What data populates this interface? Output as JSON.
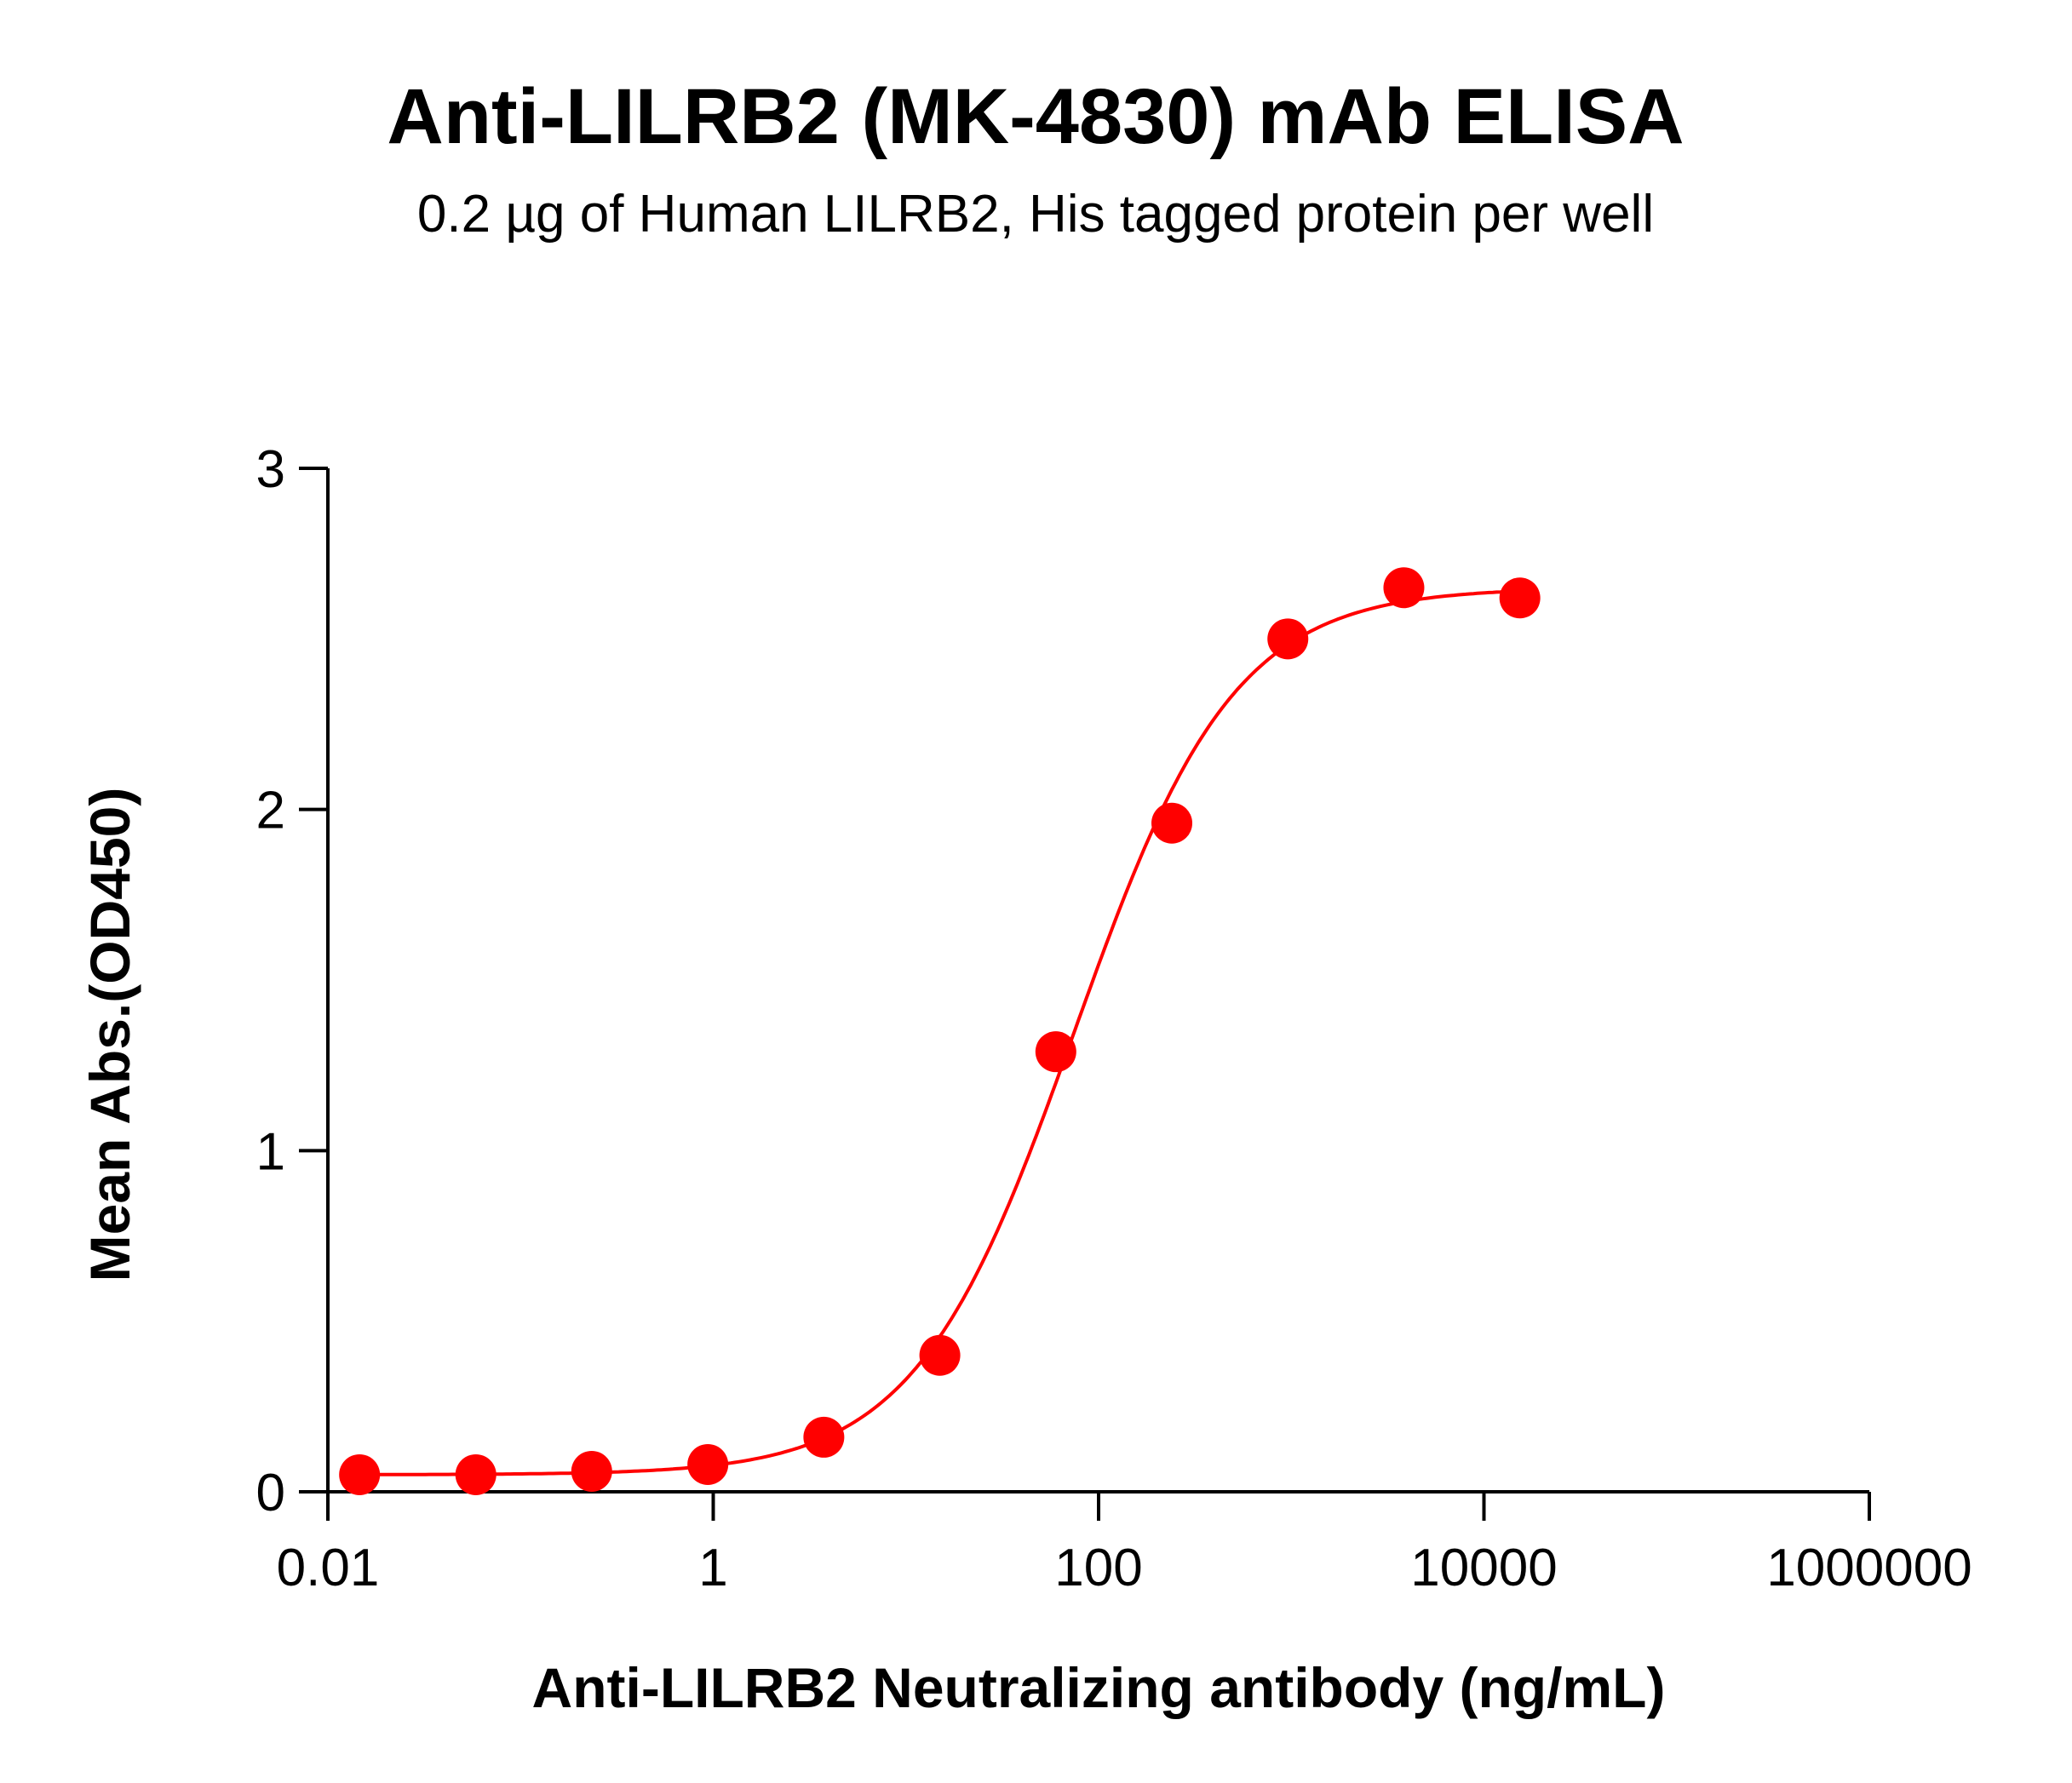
{
  "chart_data": {
    "type": "scatter",
    "title": "Anti-LILRB2 (MK-4830) mAb ELISA",
    "subtitle": "0.2 µg of Human LILRB2, His tagged protein per well",
    "xlabel": "Anti-LILRB2 Neutralizing antibody (ng/mL)",
    "ylabel": "Mean Abs.(OD450)",
    "x_scale": "log",
    "xlim": [
      0.01,
      1000000
    ],
    "ylim": [
      0,
      3
    ],
    "x_ticks": [
      {
        "value": 0.01,
        "label": "0.01"
      },
      {
        "value": 1,
        "label": "1"
      },
      {
        "value": 100,
        "label": "100"
      },
      {
        "value": 10000,
        "label": "10000"
      },
      {
        "value": 1000000,
        "label": "1000000"
      }
    ],
    "y_ticks": [
      {
        "value": 0,
        "label": "0"
      },
      {
        "value": 1,
        "label": "1"
      },
      {
        "value": 2,
        "label": "2"
      },
      {
        "value": 3,
        "label": "3"
      }
    ],
    "grid": false,
    "legend": "none",
    "color": "#ff0000",
    "series": [
      {
        "points": [
          {
            "x": 0.0146,
            "y": 0.05
          },
          {
            "x": 0.0586,
            "y": 0.05
          },
          {
            "x": 0.234,
            "y": 0.06
          },
          {
            "x": 0.9375,
            "y": 0.08
          },
          {
            "x": 3.75,
            "y": 0.16
          },
          {
            "x": 15,
            "y": 0.4
          },
          {
            "x": 60,
            "y": 1.29
          },
          {
            "x": 240,
            "y": 1.96
          },
          {
            "x": 960,
            "y": 2.5
          },
          {
            "x": 3840,
            "y": 2.65
          },
          {
            "x": 15360,
            "y": 2.62
          }
        ],
        "fit": {
          "model": "4PL",
          "bottom": 0.05,
          "top": 2.65,
          "ec50": 75,
          "hill": 1.05
        }
      }
    ]
  }
}
